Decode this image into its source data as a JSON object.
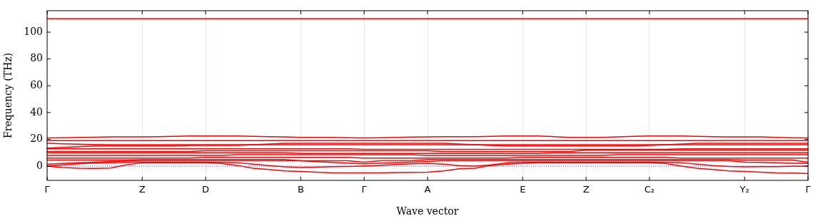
{
  "chart_data": {
    "type": "line",
    "xlabel": "Wave vector",
    "ylabel": "Frequency (THz)",
    "ylim": [
      -10.6,
      116
    ],
    "categories": [
      "Γ",
      null,
      null,
      null,
      null,
      null,
      "Z",
      null,
      null,
      null,
      "D",
      null,
      null,
      null,
      null,
      null,
      "B",
      null,
      null,
      null,
      "Γ",
      null,
      null,
      null,
      "A",
      null,
      null,
      null,
      null,
      null,
      "E",
      null,
      null,
      null,
      "Z",
      null,
      null,
      null,
      "C₂",
      null,
      null,
      null,
      null,
      null,
      "Y₂",
      null,
      null,
      null,
      "Γ"
    ],
    "yticks": [
      0,
      20,
      40,
      60,
      80,
      100
    ],
    "grid": "x",
    "legend": false,
    "marker": "none",
    "line_style": "solid",
    "ref_lines": [
      {
        "axis": "y",
        "value": 0,
        "color": "#0000ff",
        "line_style": "dotted"
      }
    ],
    "series": [
      {
        "color": "#ff0000",
        "values": [
          0,
          -1,
          -1.5,
          -1.7,
          -1.4,
          1,
          2.5,
          2.5,
          2.5,
          2.5,
          2.5,
          2,
          0.5,
          -1.5,
          -2.5,
          -3.5,
          -4,
          -4.5,
          -5,
          -5,
          -5,
          -5,
          -4.8,
          -4.6,
          -4.5,
          -3.5,
          -2,
          -1.5,
          0.5,
          1.5,
          2,
          2.5,
          2.5,
          2.5,
          2.5,
          2.5,
          2.5,
          2.5,
          2.5,
          2,
          0,
          -1.5,
          -2.5,
          -3.5,
          -4,
          -4.5,
          -5,
          -5.2,
          -5.5
        ]
      },
      {
        "color": "#ff0000",
        "values": [
          0,
          1,
          1.8,
          2.3,
          2.6,
          2.8,
          3,
          3,
          3,
          3,
          3,
          2.8,
          2.5,
          1.5,
          0.5,
          -0.5,
          -1,
          -0.7,
          -0.4,
          -0.2,
          0,
          0.6,
          1.2,
          1.8,
          2,
          1.5,
          0.5,
          0,
          1,
          2.5,
          3,
          3,
          3,
          3,
          3,
          3,
          3,
          3,
          3,
          2.8,
          2.5,
          1.5,
          0.5,
          -0.2,
          -0.5,
          -0.4,
          -0.3,
          -0.1,
          0
        ]
      },
      {
        "color": "#ff0000",
        "values": [
          1.5,
          2,
          2.5,
          3,
          3.5,
          3.8,
          4,
          4,
          4,
          4,
          4,
          4,
          4,
          4,
          4,
          4,
          4,
          3.4,
          2.8,
          2.2,
          1.8,
          2.2,
          2.6,
          3,
          3.5,
          4,
          4,
          4,
          4,
          4,
          4,
          4,
          4,
          4,
          4,
          4,
          4,
          4,
          4,
          4,
          4,
          4,
          4,
          4,
          3,
          2.8,
          2.5,
          2.2,
          2
        ]
      },
      {
        "color": "#ff0000",
        "values": [
          4.5,
          4.5,
          4.5,
          4.5,
          4.5,
          4.5,
          5,
          5,
          5,
          5,
          5,
          5,
          5,
          5,
          5,
          5,
          4,
          4,
          4,
          4,
          3,
          4,
          4,
          4,
          5,
          5,
          5,
          5,
          5,
          5,
          5,
          5,
          5,
          5,
          5,
          5,
          5,
          5,
          5,
          5,
          5,
          5,
          5,
          5,
          4.5,
          4.5,
          4.5,
          4.5,
          3
        ]
      },
      {
        "color": "#ff0000",
        "values": [
          6,
          6,
          6,
          6,
          6,
          6,
          6,
          6,
          6,
          6,
          6.5,
          6.5,
          6.5,
          6.5,
          6.5,
          6.5,
          6.5,
          6.5,
          6.5,
          6.5,
          6,
          6,
          6,
          6,
          6,
          6,
          6,
          6,
          6,
          6,
          6.5,
          6.5,
          6.5,
          6.5,
          6.5,
          6.5,
          6.5,
          6.5,
          6.5,
          6.5,
          6,
          6,
          6,
          6,
          6,
          6,
          6,
          6,
          6
        ]
      },
      {
        "color": "#ff0000",
        "values": [
          8,
          8,
          8,
          8,
          8,
          8,
          8,
          8,
          8,
          8,
          8,
          8,
          8.5,
          8.5,
          8.5,
          8.5,
          8.5,
          8.5,
          8.5,
          8.5,
          8.5,
          8.5,
          8.5,
          8.5,
          8,
          8,
          8,
          8,
          8,
          8,
          8,
          8,
          8,
          8,
          8,
          8,
          8.5,
          8.5,
          8.5,
          8.5,
          8.5,
          8.5,
          8.5,
          8.5,
          8.5,
          8.5,
          8.5,
          8.5,
          8.5
        ]
      },
      {
        "color": "#ff0000",
        "values": [
          10,
          10,
          10,
          10,
          10,
          10,
          10,
          10,
          10,
          10,
          10,
          10,
          10,
          10,
          10,
          10,
          9.5,
          9.5,
          9.5,
          9.5,
          9.5,
          9.5,
          9.5,
          9.5,
          9.5,
          9.5,
          9.5,
          9.5,
          9.5,
          9.5,
          9.5,
          9.5,
          10,
          10,
          10,
          10,
          10,
          10,
          10,
          10,
          10,
          10,
          10,
          10,
          10,
          10,
          10,
          10,
          10
        ]
      },
      {
        "color": "#ff0000",
        "values": [
          11,
          11,
          11,
          11,
          11,
          11,
          11,
          11,
          11,
          11,
          11.5,
          11.5,
          11.5,
          11.5,
          11.5,
          11.5,
          11.5,
          11.5,
          11.5,
          11.5,
          11.5,
          11.5,
          11.5,
          11.5,
          11.5,
          11,
          11,
          11,
          11,
          11,
          11,
          11,
          11,
          11,
          12,
          12,
          12,
          12,
          12,
          12,
          12,
          12,
          12,
          12,
          12,
          12,
          12,
          12,
          12
        ]
      },
      {
        "color": "#ff0000",
        "values": [
          13,
          13,
          13,
          13,
          13,
          13,
          13,
          13,
          13,
          13,
          13,
          13,
          13,
          13,
          13,
          13,
          13,
          13,
          13,
          13,
          12.5,
          12.5,
          12.5,
          12.5,
          12.5,
          12.5,
          12.5,
          12.5,
          12.5,
          12.5,
          12.5,
          12.5,
          12.5,
          12.5,
          12.5,
          12.5,
          12.5,
          12.5,
          12.5,
          12.5,
          13,
          13,
          13,
          13,
          13,
          13,
          13,
          13,
          13
        ]
      },
      {
        "color": "#ff0000",
        "values": [
          13.5,
          14,
          14.5,
          15,
          15,
          15,
          15,
          15,
          15,
          15.5,
          15.5,
          15.5,
          15.5,
          16,
          16.5,
          17,
          17,
          17,
          17,
          17,
          17,
          17,
          17,
          17,
          17,
          17,
          16.5,
          16,
          15.5,
          15,
          15,
          15,
          15,
          15,
          15,
          15,
          15,
          15,
          15.5,
          16,
          16.5,
          17,
          17,
          17,
          17,
          17,
          17,
          17,
          17
        ]
      },
      {
        "color": "#ff0000",
        "values": [
          17,
          16.7,
          16.4,
          16.1,
          16,
          16,
          16,
          16,
          16,
          16,
          16,
          16,
          16,
          16,
          16,
          16,
          16,
          16,
          16,
          16,
          16,
          16,
          16,
          16,
          16,
          16,
          16,
          16,
          16,
          16,
          16,
          16,
          16,
          16,
          16,
          16,
          16,
          16,
          16,
          16,
          16,
          16,
          16,
          16,
          16,
          16,
          16,
          16,
          16
        ]
      },
      {
        "color": "#ff0000",
        "values": [
          19,
          19,
          19,
          19,
          19,
          19,
          19,
          19,
          19,
          19,
          19,
          19,
          19,
          19,
          19,
          19,
          19,
          19,
          19,
          19,
          19,
          19,
          19,
          19,
          19,
          19,
          19,
          19,
          19,
          19,
          19,
          19,
          19,
          19,
          19,
          19,
          19,
          19,
          19,
          19,
          19,
          19,
          19,
          19,
          19,
          19,
          19,
          19,
          19
        ]
      },
      {
        "color": "#ff0000",
        "values": [
          21,
          21.2,
          21.4,
          21.6,
          21.8,
          21.8,
          21.8,
          22,
          22.3,
          22.5,
          22.5,
          22.5,
          22.5,
          22.3,
          22,
          21.8,
          21.5,
          21.5,
          21.5,
          21.2,
          21,
          21.2,
          21.5,
          21.7,
          21.8,
          22,
          22,
          22,
          22.3,
          22.5,
          22.5,
          22.5,
          22,
          21.5,
          21.5,
          21.5,
          21.8,
          22.2,
          22.5,
          22.5,
          22.5,
          22.3,
          22,
          21.8,
          21.8,
          21.8,
          21.5,
          21.2,
          21
        ]
      },
      {
        "color": "#ff0000",
        "values": [
          110,
          110,
          110,
          110,
          110,
          110,
          110,
          110,
          110,
          110,
          110,
          110,
          110,
          110,
          110,
          110,
          110,
          110,
          110,
          110,
          110,
          110,
          110,
          110,
          110,
          110,
          110,
          110,
          110,
          110,
          110,
          110,
          110,
          110,
          110,
          110,
          110,
          110,
          110,
          110,
          110,
          110,
          110,
          110,
          110,
          110,
          110,
          110,
          110
        ]
      }
    ]
  }
}
